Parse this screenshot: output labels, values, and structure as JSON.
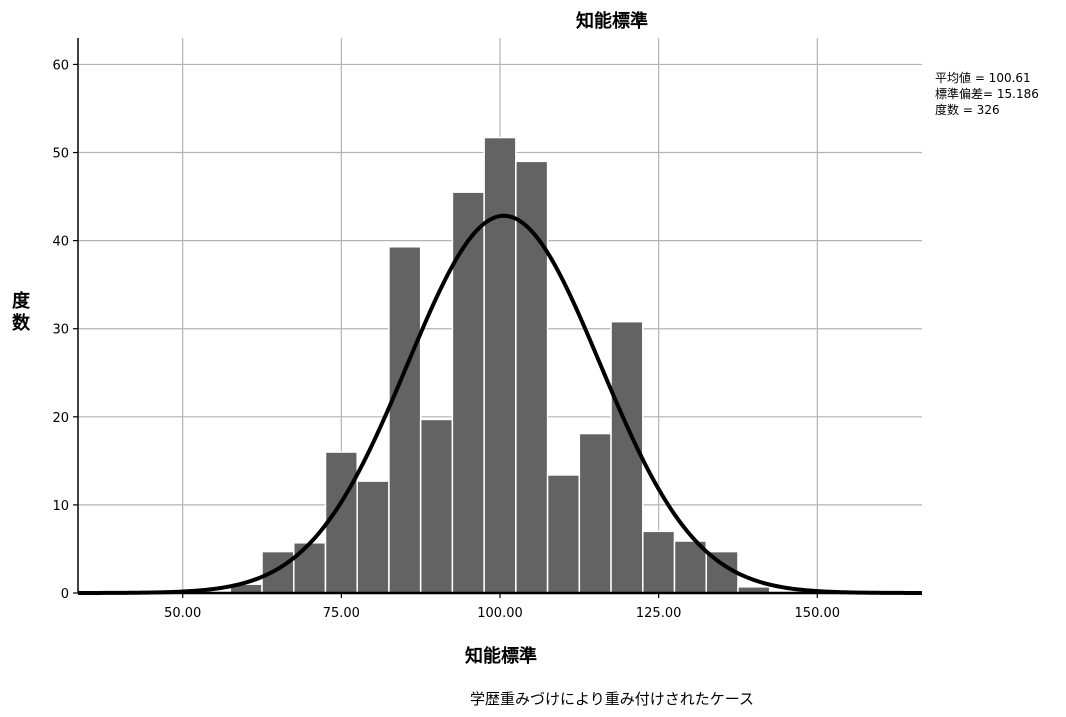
{
  "chart_data": {
    "type": "bar",
    "title": "知能標準",
    "xlabel": "知能標準",
    "ylabel": "度数",
    "footnote": "学歴重みづけにより重み付けされたケース",
    "stats": [
      "平均値 = 100.61",
      "標準偏差= 15.186",
      "度数 = 326"
    ],
    "xlim": [
      33.5,
      166.5
    ],
    "ylim": [
      0,
      63
    ],
    "x_ticks": [
      50,
      75,
      100,
      125,
      150
    ],
    "x_tick_labels": [
      "50.00",
      "75.00",
      "100.00",
      "125.00",
      "150.00"
    ],
    "y_ticks": [
      0,
      10,
      20,
      30,
      40,
      50,
      60
    ],
    "y_tick_labels": [
      "0",
      "10",
      "20",
      "30",
      "40",
      "50",
      "60"
    ],
    "bins": [
      {
        "start": 57.5,
        "end": 62.5,
        "value": 1
      },
      {
        "start": 62.5,
        "end": 67.5,
        "value": 4.7
      },
      {
        "start": 67.5,
        "end": 72.5,
        "value": 5.7
      },
      {
        "start": 72.5,
        "end": 77.5,
        "value": 16
      },
      {
        "start": 77.5,
        "end": 82.5,
        "value": 12.7
      },
      {
        "start": 82.5,
        "end": 87.5,
        "value": 39.3
      },
      {
        "start": 87.5,
        "end": 92.5,
        "value": 19.7
      },
      {
        "start": 92.5,
        "end": 97.5,
        "value": 45.5
      },
      {
        "start": 97.5,
        "end": 102.5,
        "value": 51.7
      },
      {
        "start": 102.5,
        "end": 107.5,
        "value": 49
      },
      {
        "start": 107.5,
        "end": 112.5,
        "value": 13.4
      },
      {
        "start": 112.5,
        "end": 117.5,
        "value": 18.1
      },
      {
        "start": 117.5,
        "end": 122.5,
        "value": 30.8
      },
      {
        "start": 122.5,
        "end": 127.5,
        "value": 7
      },
      {
        "start": 127.5,
        "end": 132.5,
        "value": 5.9
      },
      {
        "start": 132.5,
        "end": 137.5,
        "value": 4.7
      },
      {
        "start": 137.5,
        "end": 142.5,
        "value": 0.7
      }
    ],
    "normal_curve": {
      "mean": 100.61,
      "sd": 15.186,
      "n": 326,
      "bin_width": 5
    },
    "grid": true,
    "colors": {
      "bar": "#636363",
      "bar_edge": "#ffffff",
      "curve": "#000000",
      "grid": "#b4b4b4",
      "axis": "#000000"
    }
  }
}
